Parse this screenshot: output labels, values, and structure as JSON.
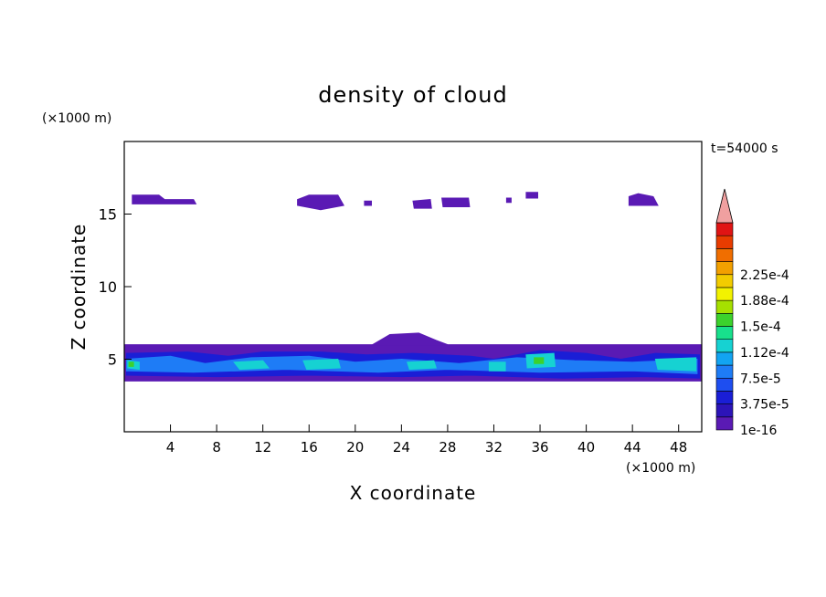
{
  "chart_data": {
    "type": "heatmap",
    "title": "density of cloud",
    "xlabel": "X coordinate",
    "ylabel": "Z coordinate",
    "x_unit": "(×1000 m)",
    "y_unit": "(×1000 m)",
    "time_label": "t=54000 s",
    "xlim": [
      0,
      50
    ],
    "ylim": [
      0,
      20
    ],
    "x_ticks": [
      4,
      8,
      12,
      16,
      20,
      24,
      28,
      32,
      36,
      40,
      44,
      48
    ],
    "y_ticks": [
      5,
      10,
      15
    ],
    "colorbar": {
      "labels": [
        "1e-16",
        "3.75e-5",
        "7.5e-5",
        "1.12e-4",
        "1.5e-4",
        "1.88e-4",
        "2.25e-4"
      ],
      "colors": [
        "#5a1ab4",
        "#2c14b8",
        "#1a1ed6",
        "#1e4ef0",
        "#1e7cf6",
        "#12a4f2",
        "#16d2d2",
        "#18e08c",
        "#3cd22c",
        "#a6e000",
        "#f2f200",
        "#f2cc00",
        "#f2a000",
        "#f06e00",
        "#e83c00",
        "#e01414"
      ],
      "extend_color": "#f0a0a0"
    },
    "regions": [
      {
        "level": "1e-16",
        "shape": [
          [
            0,
            6.0
          ],
          [
            50,
            6.0
          ],
          [
            50,
            3.5
          ],
          [
            0,
            3.5
          ]
        ]
      },
      {
        "level": "1e-16",
        "shape": [
          [
            21.5,
            6.0
          ],
          [
            23,
            6.7
          ],
          [
            25.5,
            6.8
          ],
          [
            27,
            6.3
          ],
          [
            28,
            6.0
          ]
        ]
      },
      {
        "level": "3.75e-5",
        "shape": [
          [
            0.2,
            5.4
          ],
          [
            5.5,
            5.5
          ],
          [
            9,
            5.2
          ],
          [
            12,
            5.5
          ],
          [
            17,
            5.5
          ],
          [
            21,
            5.3
          ],
          [
            25,
            5.4
          ],
          [
            30,
            5.2
          ],
          [
            32,
            5.0
          ],
          [
            36,
            5.6
          ],
          [
            40,
            5.4
          ],
          [
            43,
            5.0
          ],
          [
            46,
            5.4
          ],
          [
            49.8,
            5.3
          ],
          [
            49.8,
            3.7
          ],
          [
            45,
            3.8
          ],
          [
            38,
            3.7
          ],
          [
            30,
            3.9
          ],
          [
            24,
            3.8
          ],
          [
            16,
            3.9
          ],
          [
            8,
            3.8
          ],
          [
            0.2,
            3.9
          ]
        ]
      },
      {
        "level": "7.5e-5",
        "shape": [
          [
            0.2,
            5.0
          ],
          [
            4,
            5.2
          ],
          [
            7,
            4.7
          ],
          [
            11,
            5.1
          ],
          [
            16,
            5.2
          ],
          [
            20,
            4.8
          ],
          [
            24,
            5.0
          ],
          [
            29,
            4.7
          ],
          [
            34,
            5.1
          ],
          [
            39,
            4.9
          ],
          [
            44,
            4.8
          ],
          [
            49.6,
            5.0
          ],
          [
            49.6,
            4.0
          ],
          [
            44,
            4.2
          ],
          [
            36,
            4.1
          ],
          [
            28,
            4.3
          ],
          [
            22,
            4.1
          ],
          [
            14,
            4.3
          ],
          [
            6,
            4.1
          ],
          [
            0.2,
            4.2
          ]
        ]
      },
      {
        "level": "1.12e-4",
        "shape": [
          [
            0.3,
            4.9
          ],
          [
            1.3,
            4.8
          ],
          [
            1.3,
            4.3
          ],
          [
            0.3,
            4.4
          ]
        ]
      },
      {
        "level": "1.12e-4",
        "shape": [
          [
            9.5,
            4.8
          ],
          [
            12,
            4.9
          ],
          [
            12.5,
            4.4
          ],
          [
            10,
            4.3
          ]
        ]
      },
      {
        "level": "1.12e-4",
        "shape": [
          [
            15.5,
            4.9
          ],
          [
            18.5,
            5.0
          ],
          [
            18.7,
            4.4
          ],
          [
            15.8,
            4.3
          ]
        ]
      },
      {
        "level": "1.12e-4",
        "shape": [
          [
            24.5,
            4.8
          ],
          [
            26.8,
            4.9
          ],
          [
            27,
            4.4
          ],
          [
            24.7,
            4.3
          ]
        ]
      },
      {
        "level": "1.12e-4",
        "shape": [
          [
            31.6,
            4.8
          ],
          [
            33,
            4.8
          ],
          [
            33,
            4.2
          ],
          [
            31.6,
            4.2
          ]
        ]
      },
      {
        "level": "1.12e-4",
        "shape": [
          [
            34.8,
            5.3
          ],
          [
            37.2,
            5.4
          ],
          [
            37.3,
            4.5
          ],
          [
            34.9,
            4.4
          ]
        ]
      },
      {
        "level": "1.12e-4",
        "shape": [
          [
            46,
            5.0
          ],
          [
            49.5,
            5.1
          ],
          [
            49.5,
            4.2
          ],
          [
            46.2,
            4.3
          ]
        ]
      },
      {
        "level": "1.5e-4",
        "shape": [
          [
            35.5,
            5.1
          ],
          [
            36.3,
            5.1
          ],
          [
            36.3,
            4.7
          ],
          [
            35.5,
            4.7
          ]
        ]
      },
      {
        "level": "1.5e-4",
        "shape": [
          [
            0.4,
            4.8
          ],
          [
            0.8,
            4.8
          ],
          [
            0.8,
            4.5
          ],
          [
            0.4,
            4.5
          ]
        ]
      },
      {
        "level": "1e-16",
        "shape": [
          [
            0.7,
            16.3
          ],
          [
            3,
            16.3
          ],
          [
            3.5,
            16.0
          ],
          [
            6,
            16.0
          ],
          [
            6.2,
            15.7
          ],
          [
            0.7,
            15.7
          ]
        ]
      },
      {
        "level": "1e-16",
        "shape": [
          [
            15,
            16.0
          ],
          [
            16,
            16.3
          ],
          [
            18.5,
            16.3
          ],
          [
            19,
            15.6
          ],
          [
            17,
            15.3
          ],
          [
            15,
            15.6
          ]
        ]
      },
      {
        "level": "1e-16",
        "shape": [
          [
            20.8,
            15.9
          ],
          [
            21.4,
            15.9
          ],
          [
            21.4,
            15.6
          ],
          [
            20.8,
            15.6
          ]
        ]
      },
      {
        "level": "1e-16",
        "shape": [
          [
            25,
            15.9
          ],
          [
            26.5,
            16.0
          ],
          [
            26.6,
            15.4
          ],
          [
            25.1,
            15.4
          ]
        ]
      },
      {
        "level": "1e-16",
        "shape": [
          [
            27.5,
            16.1
          ],
          [
            29.8,
            16.1
          ],
          [
            29.9,
            15.5
          ],
          [
            27.6,
            15.5
          ]
        ]
      },
      {
        "level": "1e-16",
        "shape": [
          [
            33.1,
            16.1
          ],
          [
            33.5,
            16.1
          ],
          [
            33.5,
            15.8
          ],
          [
            33.1,
            15.8
          ]
        ]
      },
      {
        "level": "1e-16",
        "shape": [
          [
            34.8,
            16.5
          ],
          [
            35.8,
            16.5
          ],
          [
            35.8,
            16.1
          ],
          [
            34.8,
            16.1
          ]
        ]
      },
      {
        "level": "1e-16",
        "shape": [
          [
            43.7,
            16.2
          ],
          [
            44.5,
            16.4
          ],
          [
            45.8,
            16.2
          ],
          [
            46.2,
            15.6
          ],
          [
            43.7,
            15.6
          ]
        ]
      }
    ]
  }
}
